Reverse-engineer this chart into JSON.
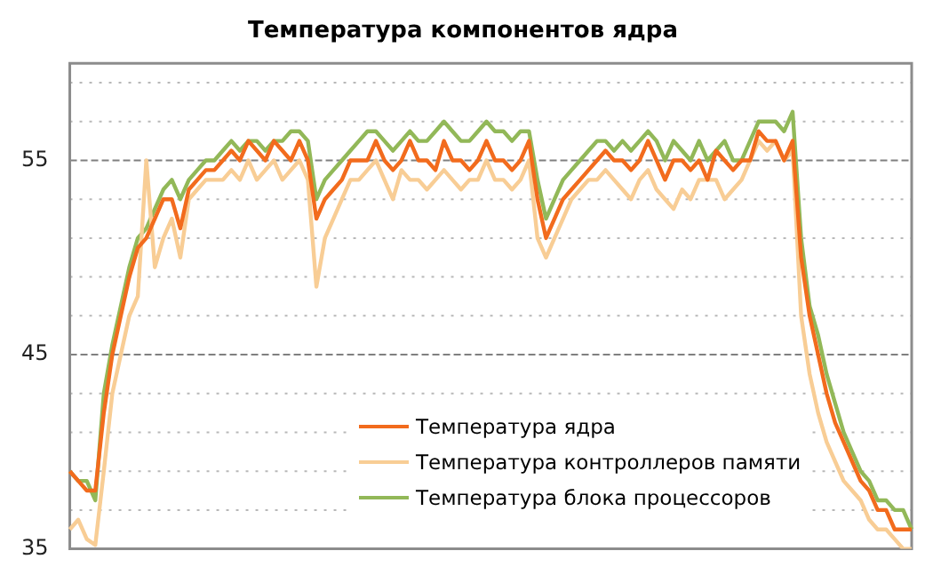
{
  "chart_data": {
    "type": "line",
    "title": "Температура компонентов ядра",
    "categories": [
      null,
      null,
      null,
      null,
      null,
      null,
      null,
      null,
      null,
      null,
      null,
      null,
      null,
      null,
      null,
      null,
      null,
      null,
      null,
      null,
      null,
      null,
      null,
      null,
      null,
      null,
      null,
      null,
      null,
      null,
      null,
      null,
      null,
      null,
      null,
      null,
      null,
      null,
      null,
      null,
      null,
      null,
      null,
      null,
      null,
      null,
      null,
      null,
      null,
      null,
      null,
      null,
      null,
      null,
      null,
      null,
      null,
      null,
      null,
      null,
      null,
      null,
      null,
      null,
      null,
      null,
      null,
      null,
      null,
      null,
      null,
      null,
      null,
      null,
      null,
      null,
      null,
      null,
      null,
      null,
      null,
      null,
      null,
      null,
      null,
      null,
      null,
      null,
      null,
      null,
      null,
      null,
      null,
      null,
      null,
      null,
      null,
      null,
      null,
      null
    ],
    "series": [
      {
        "name": "Температура ядра",
        "color": "#f26b1d",
        "values": [
          39,
          38.5,
          38,
          38,
          42,
          45,
          47,
          49,
          50.5,
          51,
          52,
          53,
          53,
          51.5,
          53.5,
          54,
          54.5,
          54.5,
          55,
          55.5,
          55,
          56,
          55.5,
          55,
          56,
          55.5,
          55,
          56,
          55,
          52,
          53,
          53.5,
          54,
          55,
          55,
          55,
          56,
          55,
          54.5,
          55,
          56,
          55,
          55,
          54.5,
          56,
          55,
          55,
          54.5,
          55,
          56,
          55,
          55,
          54.5,
          55,
          56,
          53,
          51,
          52,
          53,
          53.5,
          54,
          54.5,
          55,
          55.5,
          55,
          55,
          54.5,
          55,
          56,
          55,
          54,
          55,
          55,
          54.5,
          55,
          54,
          55.5,
          55,
          54.5,
          55,
          55,
          56.5,
          56,
          56,
          55,
          56,
          50,
          47,
          45,
          43,
          41.5,
          40.5,
          39.5,
          38.5,
          38,
          37,
          37,
          36,
          36,
          36
        ]
      },
      {
        "name": "Температура контроллеров памяти",
        "color": "#f8cd95",
        "values": [
          36,
          36.5,
          35.5,
          35.2,
          39,
          43,
          45,
          47,
          48,
          55,
          49.5,
          51,
          52,
          50,
          53,
          53.5,
          54,
          54,
          54,
          54.5,
          54,
          55,
          54,
          54.5,
          55,
          54,
          54.5,
          55,
          54,
          48.5,
          51,
          52,
          53,
          54,
          54,
          54.5,
          55,
          54,
          53,
          54.5,
          54,
          54,
          53.5,
          54,
          54.5,
          54,
          53.5,
          54,
          54,
          55,
          54,
          54,
          53.5,
          54,
          55,
          51,
          50,
          51,
          52,
          53,
          53.5,
          54,
          54,
          54.5,
          54,
          53.5,
          53,
          54,
          54.5,
          53.5,
          53,
          52.5,
          53.5,
          53,
          54,
          54,
          54,
          53,
          53.5,
          54,
          55,
          56,
          55.5,
          56,
          55,
          55.5,
          47,
          44,
          42,
          40.5,
          39.5,
          38.5,
          38,
          37.5,
          36.5,
          36,
          36,
          35.5,
          35,
          35
        ]
      },
      {
        "name": "Температура блока процессоров",
        "color": "#92b858",
        "values": [
          39,
          38.5,
          38.5,
          37.5,
          43,
          45.5,
          47.5,
          49.5,
          51,
          51.5,
          52.5,
          53.5,
          54,
          53,
          54,
          54.5,
          55,
          55,
          55.5,
          56,
          55.5,
          56,
          56,
          55.5,
          56,
          56,
          56.5,
          56.5,
          56,
          53,
          54,
          54.5,
          55,
          55.5,
          56,
          56.5,
          56.5,
          56,
          55.5,
          56,
          56.5,
          56,
          56,
          56.5,
          57,
          56.5,
          56,
          56,
          56.5,
          57,
          56.5,
          56.5,
          56,
          56.5,
          56.5,
          54,
          52,
          53,
          54,
          54.5,
          55,
          55.5,
          56,
          56,
          55.5,
          56,
          55.5,
          56,
          56.5,
          56,
          55,
          56,
          55.5,
          55,
          56,
          55,
          55.5,
          56,
          55,
          55,
          56,
          57,
          57,
          57,
          56.5,
          57.5,
          51,
          47.5,
          46,
          44,
          42.5,
          41,
          40,
          39,
          38.5,
          37.5,
          37.5,
          37,
          37,
          36
        ]
      }
    ],
    "ylim": [
      35,
      60
    ],
    "yticks": [
      35,
      {
        "value": 37,
        "label": null
      },
      {
        "value": 39,
        "label": null
      },
      {
        "value": 41,
        "label": null
      },
      {
        "value": 43,
        "label": null
      },
      45,
      {
        "value": 47,
        "label": null
      },
      {
        "value": 49,
        "label": null
      },
      {
        "value": 51,
        "label": null
      },
      {
        "value": 53,
        "label": null
      },
      55,
      {
        "value": 57,
        "label": null
      },
      {
        "value": 59,
        "label": null
      }
    ],
    "grid": "y",
    "legend": "bottom",
    "marker": "none",
    "line_style": "solid"
  }
}
